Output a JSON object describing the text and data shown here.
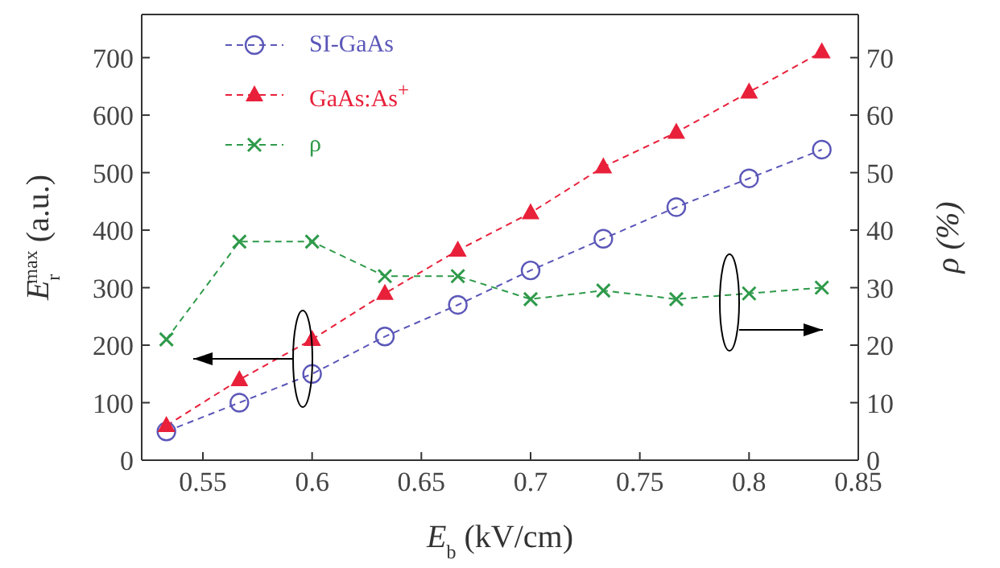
{
  "chart_data": {
    "type": "line",
    "xlabel": "E$_{b}$ (kV/cm)",
    "ylabel": "E$_{r}$$^{max}$ (a.u.)",
    "y2label": "ρ (%)",
    "x": [
      0.5333,
      0.5667,
      0.6,
      0.6333,
      0.6667,
      0.7,
      0.7333,
      0.7667,
      0.8,
      0.8333
    ],
    "series": [
      {
        "name": "SI-GaAs",
        "color": "#5b57b8",
        "marker": "circle",
        "values": [
          50,
          100,
          150,
          215,
          270,
          330,
          385,
          440,
          490,
          540
        ]
      },
      {
        "name": "GaAs:As$^{+}$",
        "color": "#e8203a",
        "marker": "triangle",
        "values": [
          60,
          140,
          210,
          290,
          365,
          430,
          510,
          570,
          640,
          710
        ]
      },
      {
        "name": "ρ",
        "color": "#2e9a4a",
        "marker": "cross",
        "axis": "y2",
        "values": [
          21,
          38,
          38,
          32,
          32,
          28,
          29.5,
          28,
          29,
          30
        ]
      }
    ],
    "xlim": [
      0.522,
      0.85
    ],
    "xticks": [
      0.55,
      0.6,
      0.65,
      0.7,
      0.75,
      0.8,
      0.85
    ],
    "ylim": [
      0,
      775
    ],
    "yticks": [
      0,
      100,
      200,
      300,
      400,
      500,
      600,
      700
    ],
    "y2lim": [
      0,
      77.5
    ],
    "y2ticks": [
      0,
      10,
      20,
      30,
      40,
      50,
      60,
      70
    ],
    "line_style": "dashed",
    "legend": "top left",
    "grid": false
  }
}
